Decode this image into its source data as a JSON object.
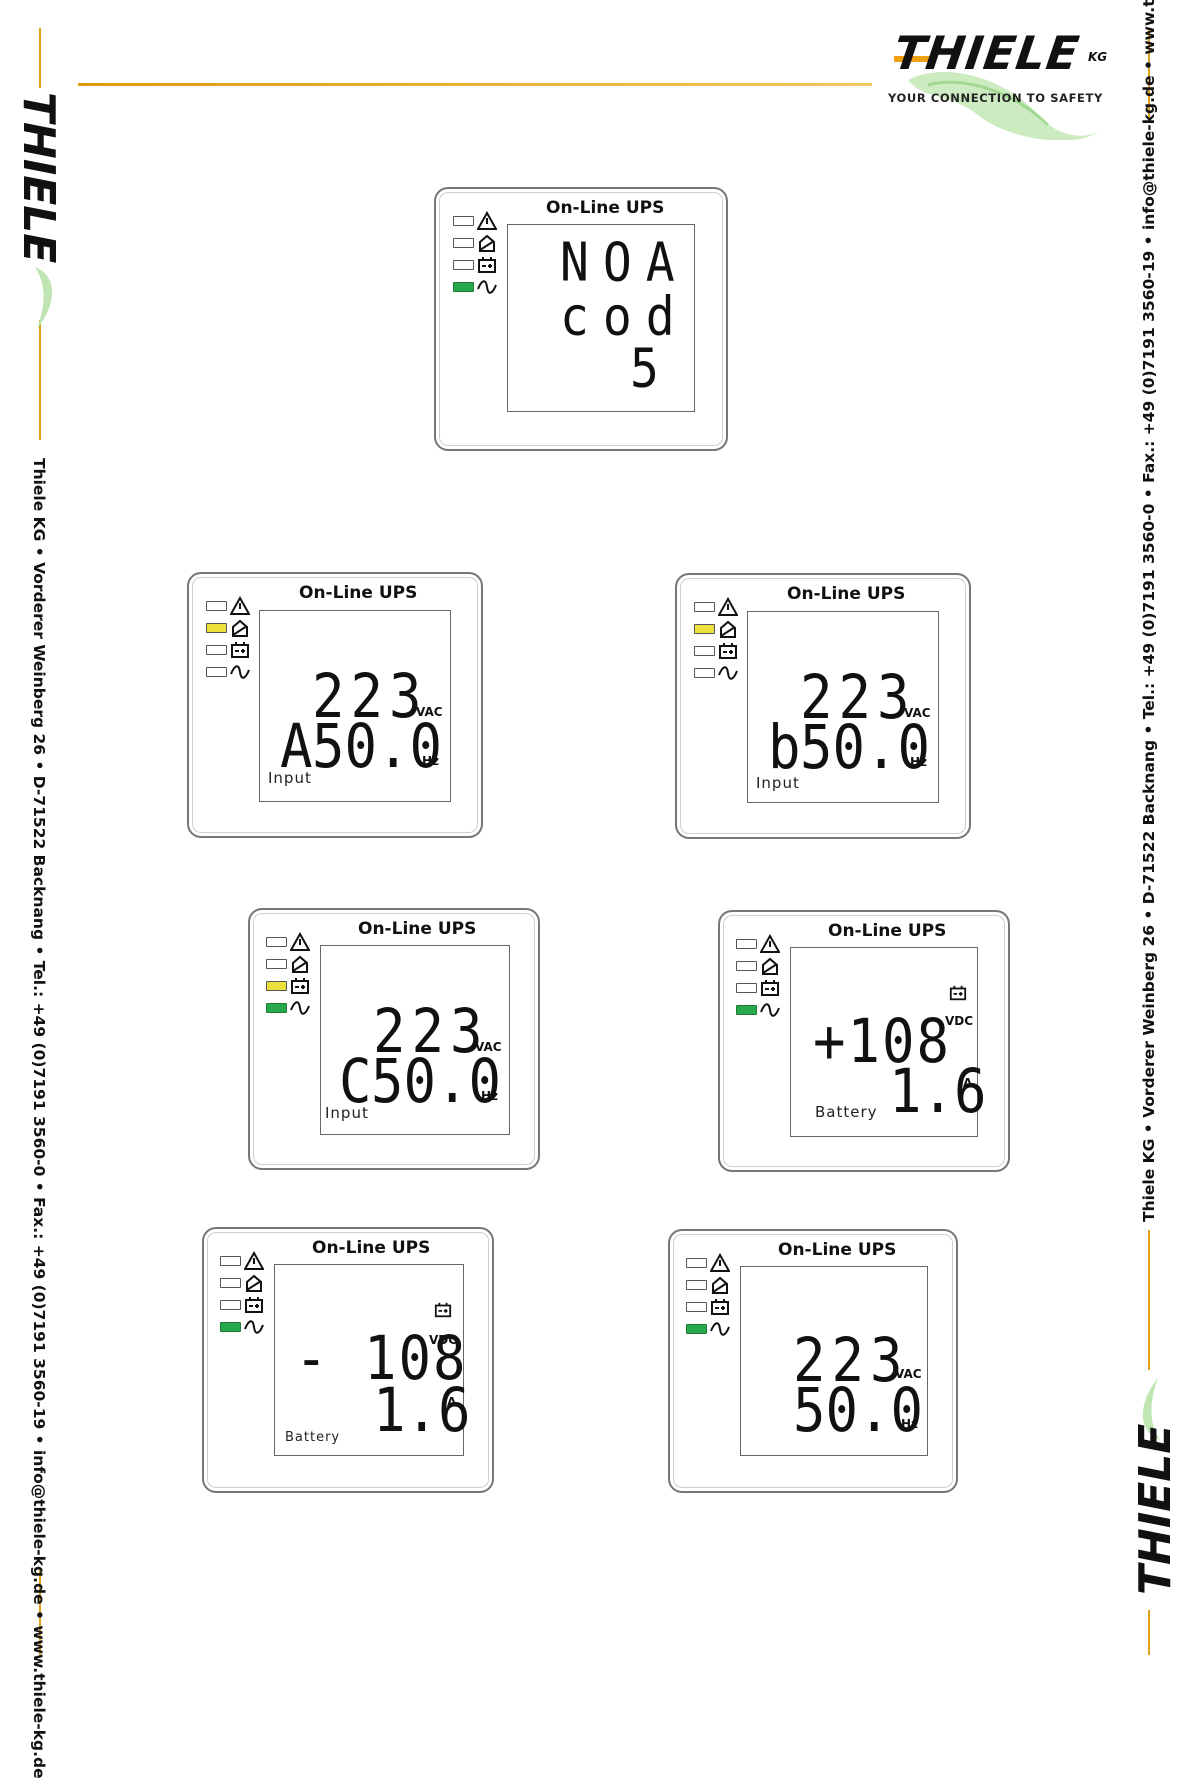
{
  "brand": {
    "name": "THIELE",
    "suffix": "KG",
    "tagline": "YOUR CONNECTION TO SAFETY",
    "colors": {
      "accent": "#e0a21c",
      "green": "#27a84a",
      "yellow": "#ece13c"
    }
  },
  "contact_line": "Thiele KG • Vorderer Weinberg 26 • D-71522 Backnang • Tel.: +49 (0)7191 3560-0 • Fax.: +49 (0)7191 3560-19 • info@thiele-kg.de • www.thiele-kg.de",
  "panel_title": "On-Line  UPS",
  "icons": [
    "warning-icon",
    "bypass-icon",
    "battery-icon",
    "sine-wave-icon"
  ],
  "panels": [
    {
      "leds": [
        "off",
        "off",
        "off",
        "green"
      ],
      "line1": "NOA",
      "line2": "cod",
      "line3": "5"
    },
    {
      "leds": [
        "off",
        "yellow",
        "off",
        "off"
      ],
      "value1": "223",
      "unit1": "VAC",
      "prefix2": "A",
      "value2": "50.0",
      "unit2": "Hz",
      "label": "Input"
    },
    {
      "leds": [
        "off",
        "yellow",
        "off",
        "off"
      ],
      "value1": "223",
      "unit1": "VAC",
      "prefix2": "b",
      "value2": "50.0",
      "unit2": "Hz",
      "label": "Input"
    },
    {
      "leds": [
        "off",
        "off",
        "yellow",
        "green"
      ],
      "value1": "223",
      "unit1": "VAC",
      "prefix2": "C",
      "value2": "50.0",
      "unit2": "Hz",
      "label": "Input"
    },
    {
      "leds": [
        "off",
        "off",
        "off",
        "green"
      ],
      "value1": "+108",
      "unit1": "VDC",
      "value2": "1.6",
      "unit2": "A",
      "label": "Battery"
    },
    {
      "leds": [
        "off",
        "off",
        "off",
        "green"
      ],
      "value1": "- 108",
      "unit1": "VDC",
      "value2": "1.6",
      "unit2": "A",
      "label": "Battery"
    },
    {
      "leds": [
        "off",
        "off",
        "off",
        "green"
      ],
      "value1": "223",
      "unit1": "VAC",
      "value2": "50.0",
      "unit2": "Hz"
    }
  ]
}
